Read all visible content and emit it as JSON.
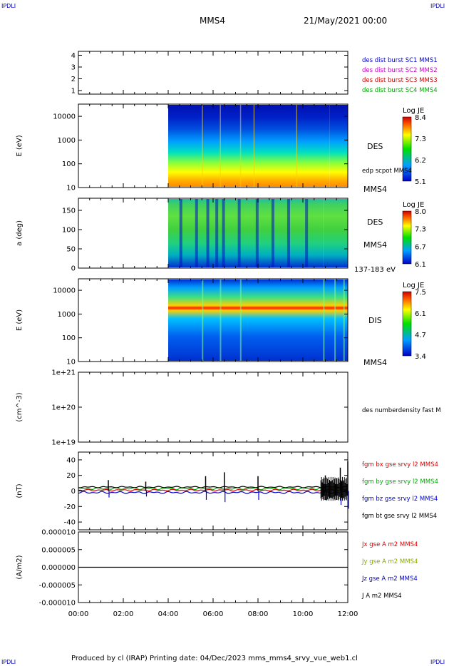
{
  "corner_label": "IPDLI",
  "header": {
    "spacecraft": "MMS4",
    "date": "21/May/2021 00:00"
  },
  "footer": "Produced by cl (IRAP)   Printing date: 04/Dec/2023   mms_mms4_srvy_vue_web1.cl",
  "chart_data": [
    {
      "panel": "burst-availability",
      "type": "line",
      "yticks": [
        "1",
        "2",
        "3",
        "4"
      ],
      "ylim": [
        0.6,
        4.4
      ],
      "legend": [
        {
          "label": "des dist burst SC1 MMS1",
          "color": "#0000cc"
        },
        {
          "label": "des dist burst SC2 MMS2",
          "color": "#cc00cc"
        },
        {
          "label": "des dist burst SC3 MMS3",
          "color": "#cc0000"
        },
        {
          "label": "des dist burst SC4 MMS4",
          "color": "#00aa00"
        }
      ]
    },
    {
      "panel": "electron-energy-spectrogram",
      "type": "heatmap",
      "ylabel": "E (eV)",
      "yticks": [
        "10",
        "100",
        "1000",
        "10000"
      ],
      "scale": "log",
      "data_start": "04:00",
      "right_labels": [
        "DES",
        "MMS4"
      ],
      "overlay_label": "edp scpot MMS4",
      "colorbar": {
        "title": "Log JE",
        "ticks": [
          "8.4",
          "7.3",
          "6.2",
          "5.1"
        ]
      }
    },
    {
      "panel": "electron-pitch-angle",
      "type": "heatmap",
      "ylabel": "a (deg)",
      "yticks": [
        "0",
        "50",
        "100",
        "150"
      ],
      "ylim": [
        0,
        180
      ],
      "right_labels": [
        "DES",
        "MMS4"
      ],
      "energy_band": "137-183 eV",
      "colorbar": {
        "title": "Log JE",
        "ticks": [
          "8.0",
          "7.3",
          "6.7",
          "6.1"
        ]
      }
    },
    {
      "panel": "ion-energy-spectrogram",
      "type": "heatmap",
      "ylabel": "E (eV)",
      "yticks": [
        "10",
        "100",
        "1000",
        "10000"
      ],
      "scale": "log",
      "right_labels": [
        "DIS",
        "MMS4"
      ],
      "colorbar": {
        "title": "Log JE",
        "ticks": [
          "7.5",
          "6.1",
          "4.7",
          "3.4"
        ]
      }
    },
    {
      "panel": "number-density",
      "type": "line",
      "ylabel": "(cm^-3)",
      "yticks": [
        "1e+19",
        "1e+20",
        "1e+21"
      ],
      "scale": "log",
      "legend": [
        {
          "label": "des numberdensity fast M",
          "color": "#000000"
        }
      ]
    },
    {
      "panel": "magnetic-field",
      "type": "line",
      "ylabel": "(nT)",
      "yticks": [
        "-40",
        "-20",
        "0",
        "20",
        "40"
      ],
      "ylim": [
        -50,
        50
      ],
      "legend": [
        {
          "label": "fgm bx gse srvy l2 MMS4",
          "color": "#dd0000"
        },
        {
          "label": "fgm by gse srvy l2 MMS4",
          "color": "#00aa00"
        },
        {
          "label": "fgm bz gse srvy l2 MMS4",
          "color": "#0000cc"
        },
        {
          "label": "fgm bt gse srvy l2 MMS4",
          "color": "#000000"
        }
      ],
      "spikes": [
        {
          "t": "01:20",
          "bt": 14
        },
        {
          "t": "03:00",
          "bt": 12
        },
        {
          "t": "05:40",
          "bt": 19
        },
        {
          "t": "06:30",
          "bt": 24
        },
        {
          "t": "08:00",
          "bt": 19
        },
        {
          "t": "11:00",
          "bt": 20
        },
        {
          "t": "11:40",
          "bt": 30
        },
        {
          "t": "12:00",
          "bt": 38
        }
      ]
    },
    {
      "panel": "current-density",
      "type": "line",
      "ylabel": "(A/m2)",
      "yticks": [
        "-0.000010",
        "-0.000005",
        "0.000000",
        "0.000005",
        "0.000010"
      ],
      "ylim": [
        -1e-05,
        1e-05
      ],
      "legend": [
        {
          "label": "Jx gse A m2 MMS4",
          "color": "#dd0000"
        },
        {
          "label": "Jy gse A m2 MMS4",
          "color": "#88aa00"
        },
        {
          "label": "Jz gse A m2 MMS4",
          "color": "#0000cc"
        },
        {
          "label": "J A m2 MMS4",
          "color": "#000000"
        }
      ]
    }
  ],
  "time_axis": {
    "ticks": [
      "00:00",
      "02:00",
      "04:00",
      "06:00",
      "08:00",
      "10:00",
      "12:00"
    ],
    "range_hours": [
      0,
      12
    ]
  }
}
